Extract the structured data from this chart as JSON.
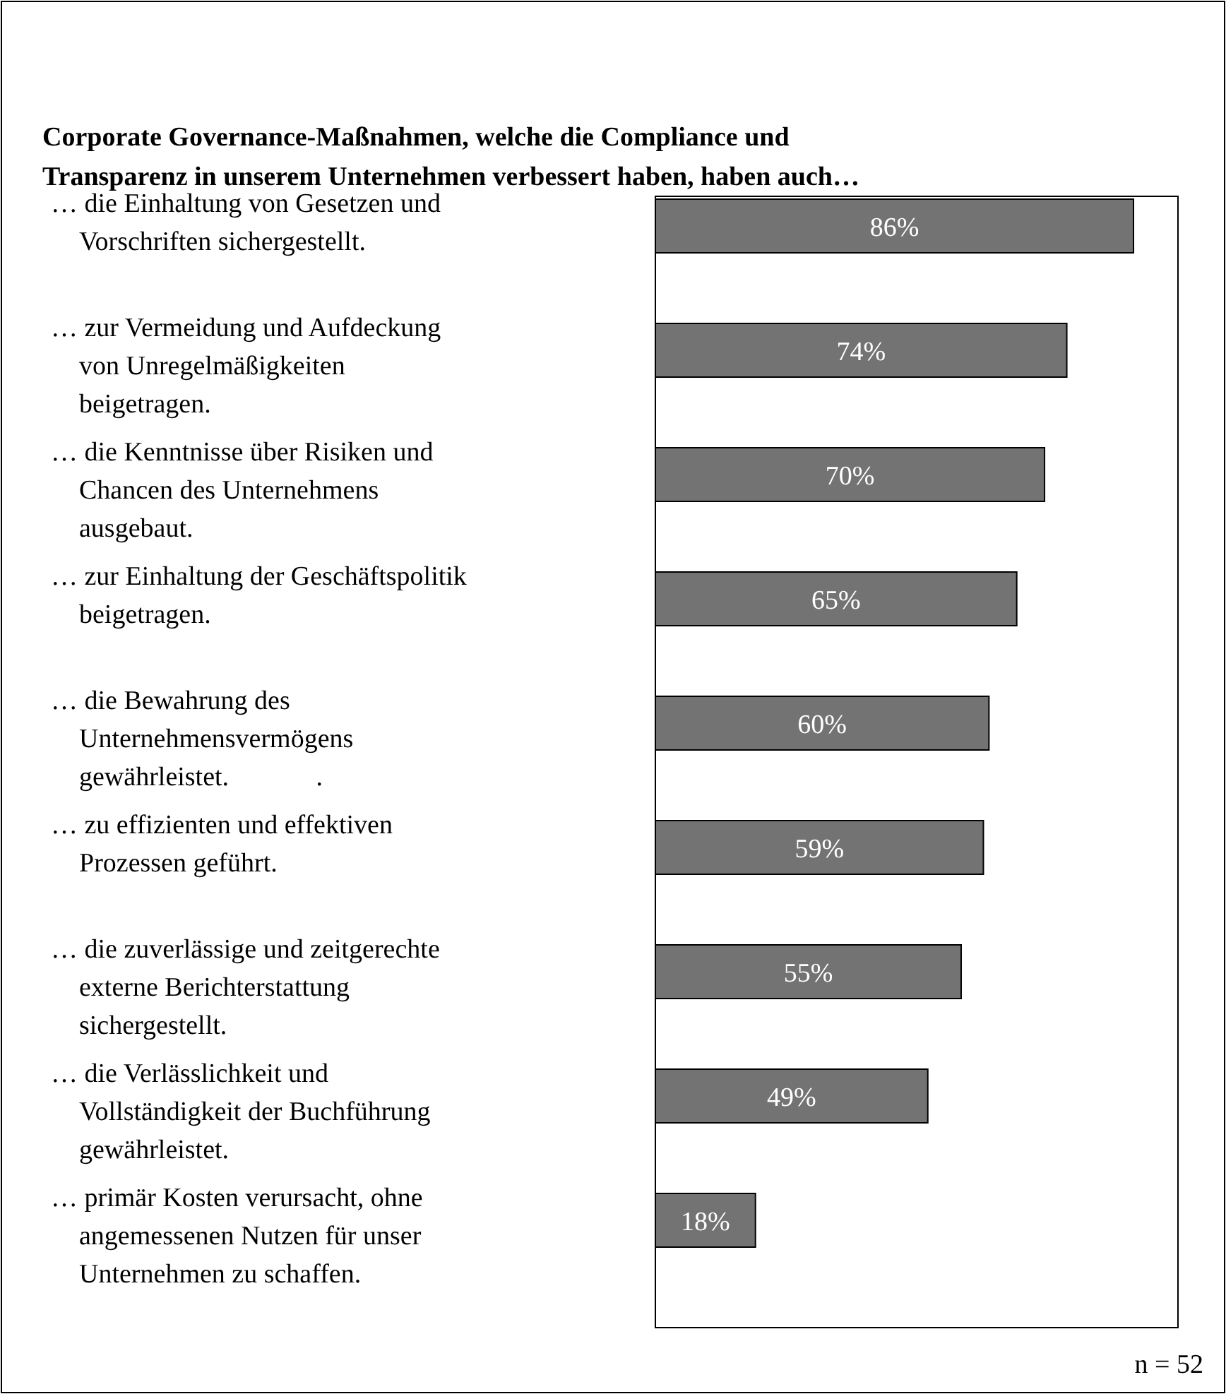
{
  "chart_data": {
    "type": "bar",
    "orientation": "horizontal",
    "title": "Corporate Governance-Maßnahmen, welche die Compliance und\nTransparenz in unserem Unternehmen verbessert haben, haben auch…",
    "categories": [
      "… die Einhaltung von Gesetzen und\nVorschriften sichergestellt.",
      "… zur Vermeidung und Aufdeckung\nvon Unregelmäßigkeiten\nbeigetragen.",
      "… die Kenntnisse über Risiken und\nChancen des Unternehmens\nausgebaut.",
      "… zur Einhaltung der Geschäftspolitik\nbeigetragen.",
      "… die Bewahrung des\nUnternehmensvermögens\ngewährleistet.             .",
      "… zu effizienten und effektiven\nProzessen geführt.",
      "… die zuverlässige und zeitgerechte\nexterne Berichterstattung\nsichergestellt.",
      "… die Verlässlichkeit und\nVollständigkeit der Buchführung\ngewährleistet.",
      "… primär Kosten verursacht, ohne\nangemessenen Nutzen für unser\nUnternehmen zu schaffen."
    ],
    "values": [
      86,
      74,
      70,
      65,
      60,
      59,
      55,
      49,
      18
    ],
    "value_labels": [
      "86%",
      "74%",
      "70%",
      "65%",
      "60%",
      "59%",
      "55%",
      "49%",
      "18%"
    ],
    "color": "#737373",
    "xlim": [
      0,
      94
    ],
    "annotations": [
      "n = 52"
    ]
  }
}
